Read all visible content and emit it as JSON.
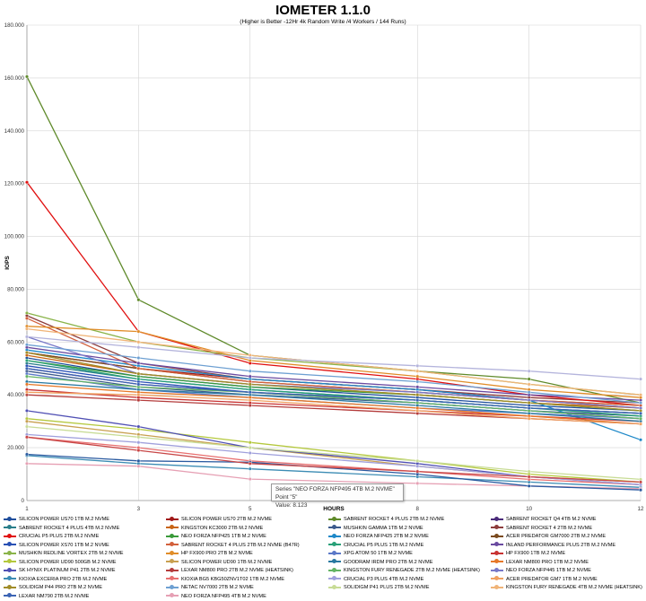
{
  "chart_data": {
    "type": "line",
    "title": "IOMETER 1.1.0",
    "subtitle": "(Higher is Better -12Hr 4k Random Write /4 Workers / 144 Runs)",
    "xlabel": "HOURS",
    "ylabel": "IOPS",
    "x": [
      1,
      3,
      5,
      8,
      10,
      12
    ],
    "x_ticks": [
      "1",
      "3",
      "5",
      "8",
      "10",
      "12"
    ],
    "ylim": [
      0,
      180000
    ],
    "y_ticks": [
      "0",
      "20.000",
      "40.000",
      "60.000",
      "80.000",
      "100.000",
      "120.000",
      "140.000",
      "160.000",
      "180.000"
    ],
    "grid": true,
    "legend_position": "bottom",
    "series": [
      {
        "name": "SILICON POWER US70 1TB M.2 NVME",
        "color": "#1f4e9c",
        "values": [
          54000,
          47000,
          43000,
          39000,
          36000,
          34000
        ]
      },
      {
        "name": "SILICON POWER US70 2TB M.2 NVME",
        "color": "#a01818",
        "values": [
          56000,
          50000,
          46000,
          42000,
          38000,
          35000
        ]
      },
      {
        "name": "SABRENT ROCKET 4 PLUS 2TB M.2 NVME",
        "color": "#5f8a2a",
        "values": [
          160500,
          76000,
          55000,
          49000,
          46000,
          37000
        ]
      },
      {
        "name": "SABRENT ROCKET Q4 4TB M.2 NVME",
        "color": "#4a2a7a",
        "values": [
          50000,
          44000,
          41000,
          38000,
          35000,
          33000
        ]
      },
      {
        "name": "SABRENT ROCKET 4 PLUS 4TB M.2 NVME",
        "color": "#2a7e8a",
        "values": [
          52000,
          46000,
          42000,
          38000,
          35000,
          33000
        ]
      },
      {
        "name": "KINGSTON KC3000 2TB M.2 NVME",
        "color": "#c86414",
        "values": [
          55000,
          48000,
          44000,
          40000,
          37000,
          35000
        ]
      },
      {
        "name": "MUSHKIN GAMMA 1TB M.2 NVME",
        "color": "#3c5a8c",
        "values": [
          49000,
          43000,
          40000,
          37000,
          34000,
          32000
        ]
      },
      {
        "name": "SABRENT ROCKET 4 2TB M.2 NVME",
        "color": "#8c3c3c",
        "values": [
          70000,
          52000,
          46000,
          42000,
          39000,
          37000
        ]
      },
      {
        "name": "CRUCIAL P5 PLUS 2TB M.2 NVME",
        "color": "#e01010",
        "values": [
          120500,
          64000,
          52000,
          46000,
          40000,
          36000
        ]
      },
      {
        "name": "NEO FORZA NFP425 1TB M.2 NVME",
        "color": "#3a9a3a",
        "values": [
          53000,
          47000,
          43000,
          40000,
          37000,
          34000
        ]
      },
      {
        "name": "NEO FORZA NFP425 2TB M.2 NVME",
        "color": "#1e88c8",
        "values": [
          57000,
          51000,
          46000,
          42000,
          38000,
          23000
        ]
      },
      {
        "name": "ACER PREDATOR GM7000 2TB M.2 NVME",
        "color": "#7a4a1e",
        "values": [
          56000,
          50000,
          45000,
          41000,
          38000,
          36000
        ]
      },
      {
        "name": "SILICON POWER XS70 1TB M.2 NVME",
        "color": "#2850b4",
        "values": [
          51000,
          45000,
          41000,
          37000,
          34000,
          31000
        ]
      },
      {
        "name": "SABRENT ROCKET 4 PLUS 2TB M.2 NVME (B47R)",
        "color": "#d2603c",
        "values": [
          69000,
          50000,
          45000,
          41000,
          38000,
          36000
        ]
      },
      {
        "name": "CRUCIAL P5 PLUS 1TB M.2 NVME",
        "color": "#28a078",
        "values": [
          53000,
          46000,
          42000,
          38000,
          35000,
          32000
        ]
      },
      {
        "name": "INLAND PERFORMANCE PLUS 2TB M.2 NVME",
        "color": "#6a4aa0",
        "values": [
          58000,
          52000,
          47000,
          43000,
          40000,
          38000
        ]
      },
      {
        "name": "MUSHKIN REDLINE VORTEX 2TB M.2 NVME",
        "color": "#8ab44a",
        "values": [
          71000,
          60000,
          54000,
          49000,
          44000,
          40000
        ]
      },
      {
        "name": "HP FX900 PRO 2TB M.2 NVME",
        "color": "#e08c28",
        "values": [
          66000,
          64000,
          53000,
          47000,
          42000,
          39000
        ]
      },
      {
        "name": "XPG ATOM 50 1TB M.2 NVME",
        "color": "#5a78c8",
        "values": [
          48000,
          42000,
          39000,
          35000,
          33000,
          31000
        ]
      },
      {
        "name": "HP FX900 1TB M.2 NVME",
        "color": "#c83232",
        "values": [
          42000,
          39000,
          37000,
          34000,
          32000,
          30000
        ]
      },
      {
        "name": "SILICON POWER UD90 500GB M.2 NVME",
        "color": "#b4c83c",
        "values": [
          31000,
          27000,
          22000,
          15000,
          10000,
          7000
        ]
      },
      {
        "name": "SILICON POWER UD90 1TB M.2 NVME",
        "color": "#c8a050",
        "values": [
          30000,
          25000,
          20000,
          13000,
          9000,
          7000
        ]
      },
      {
        "name": "GOODRAM IRDM PRO 2TB M.2 NVME",
        "color": "#2878a0",
        "values": [
          45000,
          42000,
          40000,
          36000,
          33000,
          30000
        ]
      },
      {
        "name": "LEXAR NM800 PRO 1TB M.2 NVME",
        "color": "#e67828",
        "values": [
          44000,
          41000,
          39000,
          35000,
          32000,
          29000
        ]
      },
      {
        "name": "SK HYNIX PLATINUM P41 2TB M.2 NVME",
        "color": "#5050b4",
        "values": [
          34000,
          28000,
          20000,
          14000,
          9000,
          6000
        ]
      },
      {
        "name": "LEXAR NM800 PRO 2TB M.2 NVME (HEATSINK)",
        "color": "#b43c3c",
        "values": [
          40000,
          38000,
          36000,
          33000,
          31000,
          29000
        ]
      },
      {
        "name": "KINGSTON FURY RENEGADE 2TB M.2 NVME (HEATSINK)",
        "color": "#64b464",
        "values": [
          47000,
          43000,
          41000,
          37000,
          34000,
          31000
        ]
      },
      {
        "name": "NEO FORZA NFP445 1TB M.2 NVME",
        "color": "#7878c8",
        "values": [
          62000,
          48000,
          44000,
          41000,
          38000,
          35000
        ]
      },
      {
        "name": "KIOXIA EXCERIA PRO 2TB M.2 NVME",
        "color": "#3c8cb4",
        "values": [
          17000,
          14000,
          12000,
          9000,
          7000,
          5000
        ]
      },
      {
        "name": "KIOXIA BG5 KBG50ZNV1T02 1TB M.2 NVME",
        "color": "#e87070",
        "values": [
          24000,
          20000,
          15000,
          11000,
          8000,
          6000
        ]
      },
      {
        "name": "CRUCIAL P3 PLUS 4TB M.2 NVME",
        "color": "#a0a0dc",
        "values": [
          25000,
          22000,
          18000,
          13000,
          9000,
          6000
        ]
      },
      {
        "name": "ACER PREDATOR GM7 1TB M.2 NVME",
        "color": "#f0a060",
        "values": [
          41000,
          40000,
          38000,
          34000,
          31000,
          29000
        ]
      },
      {
        "name": "SOLIDIGM P44 PRO 2TB M.2 NVME",
        "color": "#a08c28",
        "values": [
          56000,
          48000,
          44000,
          40000,
          37000,
          34000
        ]
      },
      {
        "name": "NETAC NV7000 2TB M.2 NVME",
        "color": "#6ea0d2",
        "values": [
          59000,
          54000,
          49000,
          45000,
          41000,
          37000
        ]
      },
      {
        "name": "SOLIDIGM P41 PLUS 2TB M.2 NVME",
        "color": "#c8dc96",
        "values": [
          28000,
          24000,
          20000,
          15000,
          11000,
          8000
        ]
      },
      {
        "name": "KINGSTON FURY RENEGADE 4TB M.2 NVME (HEATSINK)",
        "color": "#f0b478",
        "values": [
          65000,
          60000,
          55000,
          49000,
          44000,
          40000
        ]
      },
      {
        "name": "LEXAR NM790 2TB M.2 NVME",
        "color": "#3c64b4",
        "values": [
          50000,
          44000,
          41000,
          38000,
          35000,
          33000
        ]
      },
      {
        "name": "NEO FORZA NFP495 4TB M.2 NVME",
        "color": "#e6a0b4",
        "values": [
          14000,
          13000,
          8123,
          6500,
          5500,
          4500
        ]
      },
      {
        "name": "",
        "color": "#b4b4dc",
        "values": [
          62000,
          58000,
          54000,
          51000,
          49000,
          46000
        ]
      },
      {
        "name": "",
        "color": "#2a5aa0",
        "values": [
          17500,
          15000,
          14500,
          10000,
          5500,
          4000
        ]
      },
      {
        "name": "",
        "color": "#c84646",
        "values": [
          24000,
          19000,
          14000,
          11000,
          9000,
          7000
        ]
      }
    ],
    "tooltip": {
      "line1": "Series \"NEO FORZA NFP495 4TB M.2 NVME\" Point \"5\"",
      "line2": "Value: 8.123"
    }
  }
}
